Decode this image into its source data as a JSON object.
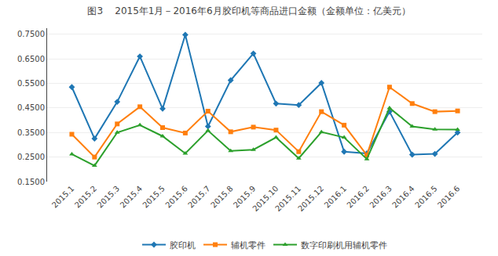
{
  "chart_data": {
    "type": "line",
    "title": "图3    2015年1月－2016年6月胶印机等商品进口金额（金额单位：亿美元）",
    "categories": [
      "2015.1",
      "2015.2",
      "2015.3",
      "2015.4",
      "2015.5",
      "2015.6",
      "2015.7",
      "2015.8",
      "2015.9",
      "2015.10",
      "2015.11",
      "2015.12",
      "2016.1",
      "2016.2",
      "2016.3",
      "2016.4",
      "2016.5",
      "2016.6"
    ],
    "series": [
      {
        "name": "胶印机",
        "marker": "diamond",
        "values": [
          0.535,
          0.325,
          0.475,
          0.66,
          0.447,
          0.748,
          0.375,
          0.563,
          0.672,
          0.468,
          0.462,
          0.552,
          0.272,
          0.265,
          0.435,
          0.26,
          0.263,
          0.35
        ]
      },
      {
        "name": "辅机零件",
        "marker": "square",
        "values": [
          0.343,
          0.25,
          0.385,
          0.455,
          0.37,
          0.348,
          0.437,
          0.353,
          0.372,
          0.36,
          0.272,
          0.435,
          0.38,
          0.258,
          0.535,
          0.468,
          0.435,
          0.438
        ]
      },
      {
        "name": "数字印刷机用辅机零件",
        "marker": "triangle-up",
        "values": [
          0.262,
          0.215,
          0.35,
          0.38,
          0.335,
          0.265,
          0.358,
          0.275,
          0.28,
          0.33,
          0.245,
          0.352,
          0.33,
          0.242,
          0.45,
          0.375,
          0.363,
          0.362
        ]
      }
    ],
    "ylim": [
      0.15,
      0.775
    ],
    "yticks": [
      {
        "value": 0.15,
        "label": "0.1500"
      },
      {
        "value": 0.25,
        "label": "0.2500"
      },
      {
        "value": 0.35,
        "label": "0.3500"
      },
      {
        "value": 0.45,
        "label": "0.4500"
      },
      {
        "value": 0.55,
        "label": "0.5500"
      },
      {
        "value": 0.65,
        "label": "0.6500"
      },
      {
        "value": 0.75,
        "label": "0.7500"
      }
    ],
    "grid": true,
    "legend": "bottom"
  }
}
